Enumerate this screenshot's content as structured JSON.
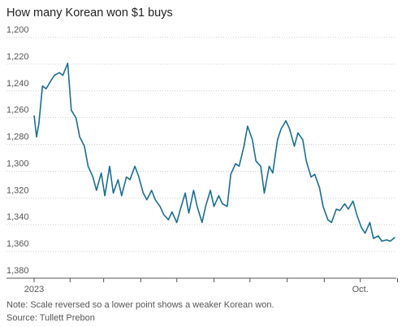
{
  "chart_data": {
    "type": "line",
    "title": "How many Korean won $1 buys",
    "xlabel": "",
    "ylabel": "",
    "y_reversed": true,
    "ylim": [
      1200,
      1380
    ],
    "yticks": [
      1200,
      1220,
      1240,
      1260,
      1280,
      1300,
      1320,
      1340,
      1360,
      1380
    ],
    "ytick_labels": [
      "1,200",
      "1,220",
      "1,240",
      "1,260",
      "1,280",
      "1,300",
      "1,320",
      "1,340",
      "1,360",
      "1,380"
    ],
    "xlim": [
      "2023-01-02",
      "2023-10-31"
    ],
    "xticks": [
      {
        "label": "2023",
        "date": "2023-01-02"
      },
      {
        "label": "Oct.",
        "date": "2023-10-01"
      }
    ],
    "minor_xticks": [
      "2023-02-01",
      "2023-03-01",
      "2023-04-01",
      "2023-05-01",
      "2023-06-01",
      "2023-07-01",
      "2023-08-01",
      "2023-09-01",
      "2023-11-01"
    ],
    "grid": true,
    "series": [
      {
        "color": "#1a6e93",
        "x": [
          "2023-01-02",
          "2023-01-04",
          "2023-01-06",
          "2023-01-09",
          "2023-01-12",
          "2023-01-16",
          "2023-01-19",
          "2023-01-23",
          "2023-01-26",
          "2023-01-30",
          "2023-02-02",
          "2023-02-06",
          "2023-02-09",
          "2023-02-13",
          "2023-02-16",
          "2023-02-20",
          "2023-02-23",
          "2023-02-27",
          "2023-03-02",
          "2023-03-06",
          "2023-03-09",
          "2023-03-13",
          "2023-03-16",
          "2023-03-20",
          "2023-03-23",
          "2023-03-27",
          "2023-03-30",
          "2023-04-03",
          "2023-04-06",
          "2023-04-10",
          "2023-04-13",
          "2023-04-17",
          "2023-04-20",
          "2023-04-24",
          "2023-04-27",
          "2023-05-01",
          "2023-05-04",
          "2023-05-08",
          "2023-05-11",
          "2023-05-15",
          "2023-05-18",
          "2023-05-22",
          "2023-05-25",
          "2023-05-29",
          "2023-06-01",
          "2023-06-05",
          "2023-06-08",
          "2023-06-12",
          "2023-06-15",
          "2023-06-19",
          "2023-06-22",
          "2023-06-26",
          "2023-06-29",
          "2023-07-03",
          "2023-07-06",
          "2023-07-10",
          "2023-07-13",
          "2023-07-17",
          "2023-07-20",
          "2023-07-24",
          "2023-07-27",
          "2023-07-31",
          "2023-08-03",
          "2023-08-07",
          "2023-08-10",
          "2023-08-14",
          "2023-08-17",
          "2023-08-21",
          "2023-08-24",
          "2023-08-28",
          "2023-08-31",
          "2023-09-04",
          "2023-09-07",
          "2023-09-11",
          "2023-09-14",
          "2023-09-18",
          "2023-09-21",
          "2023-09-25",
          "2023-09-28",
          "2023-10-02",
          "2023-10-05",
          "2023-10-09",
          "2023-10-12",
          "2023-10-16",
          "2023-10-19",
          "2023-10-23",
          "2023-10-26",
          "2023-10-30"
        ],
        "y": [
          1262,
          1278,
          1268,
          1240,
          1242,
          1236,
          1232,
          1230,
          1232,
          1223,
          1258,
          1264,
          1278,
          1285,
          1300,
          1308,
          1318,
          1305,
          1322,
          1300,
          1320,
          1310,
          1322,
          1308,
          1310,
          1300,
          1307,
          1320,
          1325,
          1318,
          1325,
          1330,
          1336,
          1340,
          1334,
          1342,
          1332,
          1320,
          1335,
          1318,
          1330,
          1342,
          1330,
          1318,
          1330,
          1322,
          1328,
          1330,
          1306,
          1298,
          1300,
          1285,
          1270,
          1280,
          1296,
          1300,
          1320,
          1300,
          1305,
          1280,
          1272,
          1266,
          1272,
          1285,
          1275,
          1280,
          1296,
          1308,
          1306,
          1316,
          1330,
          1340,
          1342,
          1332,
          1333,
          1328,
          1332,
          1326,
          1336,
          1346,
          1350,
          1342,
          1354,
          1352,
          1356,
          1355,
          1356,
          1353
        ]
      }
    ],
    "note": "Note: Scale reversed so a lower point shows a weaker Korean won.",
    "source": "Source: Tullett Prebon"
  }
}
